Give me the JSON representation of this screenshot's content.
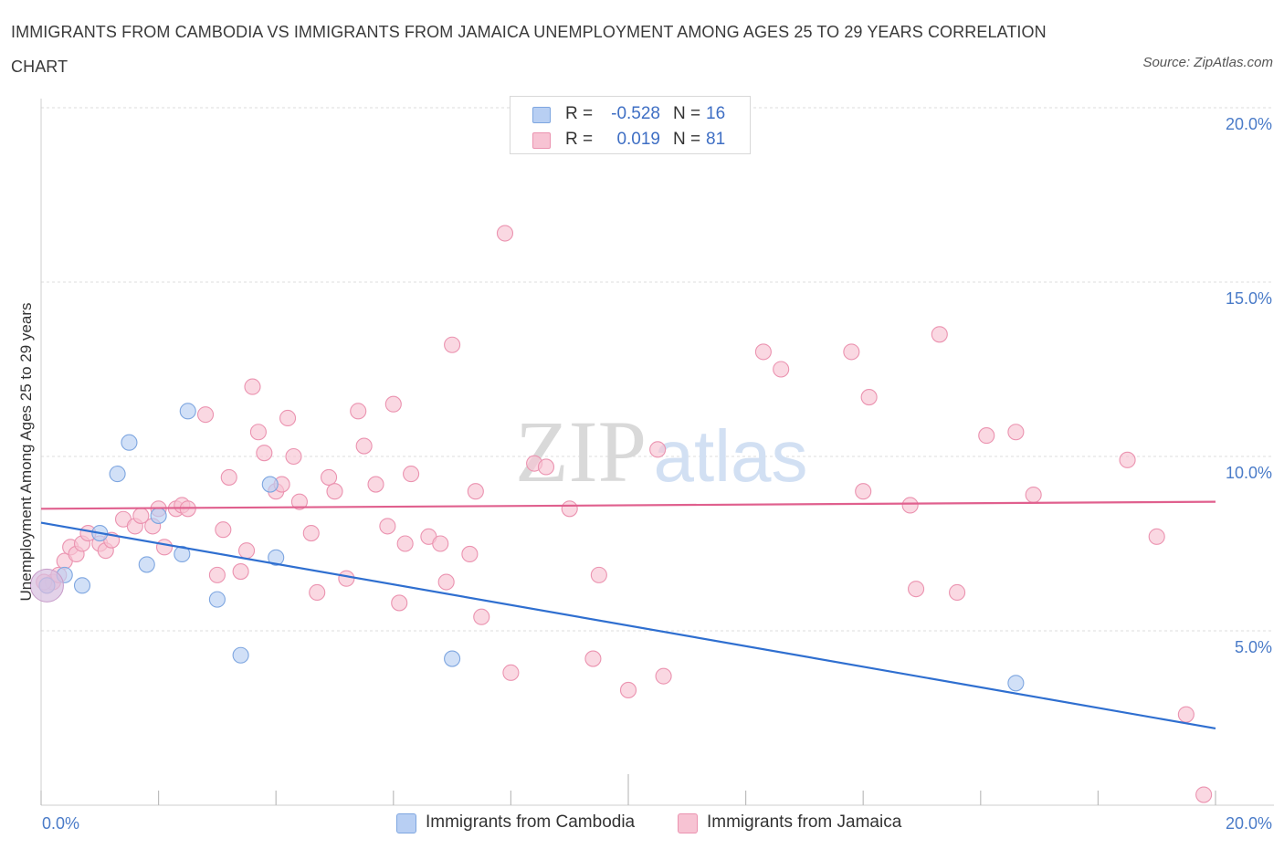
{
  "title": "IMMIGRANTS FROM CAMBODIA VS IMMIGRANTS FROM JAMAICA UNEMPLOYMENT AMONG AGES 25 TO 29 YEARS CORRELATION CHART",
  "source": "Source: ZipAtlas.com",
  "watermark": {
    "zip": "ZIP",
    "atlas": "atlas"
  },
  "colors": {
    "cambodia_fill": "#b8cff3",
    "cambodia_stroke": "#7ea6e0",
    "cambodia_line": "#2f6fd0",
    "jamaica_fill": "#f7c3d3",
    "jamaica_stroke": "#eb93b0",
    "jamaica_line": "#e0608e",
    "tick_text": "#4a7bc8",
    "grid": "#dcdcdc"
  },
  "legend": {
    "rows": [
      {
        "r_label": "R =",
        "r_value": "-0.528",
        "n_label": "N =",
        "n_value": "16"
      },
      {
        "r_label": "R =",
        "r_value": "0.019",
        "n_label": "N =",
        "n_value": "81"
      }
    ]
  },
  "bottom_legend": [
    "Immigrants from Cambodia",
    "Immigrants from Jamaica"
  ],
  "chart_data": {
    "type": "scatter",
    "xlabel": "",
    "ylabel": "Unemployment Among Ages 25 to 29 years",
    "xlim": [
      0,
      20
    ],
    "ylim": [
      0,
      20
    ],
    "x_tick_labels": [
      "0.0%",
      "20.0%"
    ],
    "y_ticks": [
      5,
      10,
      15,
      20
    ],
    "y_tick_labels": [
      "5.0%",
      "10.0%",
      "15.0%",
      "20.0%"
    ],
    "grid": true,
    "series": [
      {
        "name": "Immigrants from Cambodia",
        "points": [
          [
            0.1,
            6.3
          ],
          [
            0.4,
            6.6
          ],
          [
            0.7,
            6.3
          ],
          [
            1.0,
            7.8
          ],
          [
            1.3,
            9.5
          ],
          [
            1.5,
            10.4
          ],
          [
            1.8,
            6.9
          ],
          [
            2.0,
            8.3
          ],
          [
            2.4,
            7.2
          ],
          [
            2.5,
            11.3
          ],
          [
            3.0,
            5.9
          ],
          [
            3.4,
            4.3
          ],
          [
            3.9,
            9.2
          ],
          [
            4.0,
            7.1
          ],
          [
            7.0,
            4.2
          ],
          [
            16.6,
            3.5
          ]
        ],
        "trend": [
          [
            0,
            8.1
          ],
          [
            20,
            2.2
          ]
        ]
      },
      {
        "name": "Immigrants from Jamaica",
        "points": [
          [
            0.1,
            6.3
          ],
          [
            0.2,
            6.4
          ],
          [
            0.3,
            6.6
          ],
          [
            0.4,
            7.0
          ],
          [
            0.5,
            7.4
          ],
          [
            0.6,
            7.2
          ],
          [
            0.7,
            7.5
          ],
          [
            0.8,
            7.8
          ],
          [
            1.0,
            7.5
          ],
          [
            1.1,
            7.3
          ],
          [
            1.2,
            7.6
          ],
          [
            1.4,
            8.2
          ],
          [
            1.6,
            8.0
          ],
          [
            1.7,
            8.3
          ],
          [
            1.9,
            8.0
          ],
          [
            2.0,
            8.5
          ],
          [
            2.1,
            7.4
          ],
          [
            2.3,
            8.5
          ],
          [
            2.4,
            8.6
          ],
          [
            2.5,
            8.5
          ],
          [
            2.8,
            11.2
          ],
          [
            3.0,
            6.6
          ],
          [
            3.1,
            7.9
          ],
          [
            3.2,
            9.4
          ],
          [
            3.4,
            6.7
          ],
          [
            3.5,
            7.3
          ],
          [
            3.6,
            12.0
          ],
          [
            3.7,
            10.7
          ],
          [
            3.8,
            10.1
          ],
          [
            4.0,
            9.0
          ],
          [
            4.1,
            9.2
          ],
          [
            4.2,
            11.1
          ],
          [
            4.3,
            10.0
          ],
          [
            4.4,
            8.7
          ],
          [
            4.6,
            7.8
          ],
          [
            4.7,
            6.1
          ],
          [
            4.9,
            9.4
          ],
          [
            5.0,
            9.0
          ],
          [
            5.2,
            6.5
          ],
          [
            5.4,
            11.3
          ],
          [
            5.5,
            10.3
          ],
          [
            5.7,
            9.2
          ],
          [
            5.9,
            8.0
          ],
          [
            6.0,
            11.5
          ],
          [
            6.1,
            5.8
          ],
          [
            6.2,
            7.5
          ],
          [
            6.3,
            9.5
          ],
          [
            6.6,
            7.7
          ],
          [
            6.8,
            7.5
          ],
          [
            6.9,
            6.4
          ],
          [
            7.0,
            13.2
          ],
          [
            7.3,
            7.2
          ],
          [
            7.4,
            9.0
          ],
          [
            7.5,
            5.4
          ],
          [
            7.9,
            16.4
          ],
          [
            8.0,
            3.8
          ],
          [
            8.4,
            9.8
          ],
          [
            8.6,
            9.7
          ],
          [
            9.0,
            8.5
          ],
          [
            9.4,
            4.2
          ],
          [
            9.5,
            6.6
          ],
          [
            10.0,
            3.3
          ],
          [
            10.5,
            10.2
          ],
          [
            10.6,
            3.7
          ],
          [
            12.3,
            13.0
          ],
          [
            12.6,
            12.5
          ],
          [
            13.8,
            13.0
          ],
          [
            14.0,
            9.0
          ],
          [
            14.1,
            11.7
          ],
          [
            14.8,
            8.6
          ],
          [
            14.9,
            6.2
          ],
          [
            15.3,
            13.5
          ],
          [
            15.6,
            6.1
          ],
          [
            16.1,
            10.6
          ],
          [
            16.6,
            10.7
          ],
          [
            16.9,
            8.9
          ],
          [
            18.5,
            9.9
          ],
          [
            19.0,
            7.7
          ],
          [
            19.5,
            2.6
          ],
          [
            19.8,
            0.3
          ],
          [
            0.05,
            6.4
          ]
        ],
        "trend": [
          [
            0,
            8.5
          ],
          [
            20,
            8.7
          ]
        ]
      }
    ]
  }
}
